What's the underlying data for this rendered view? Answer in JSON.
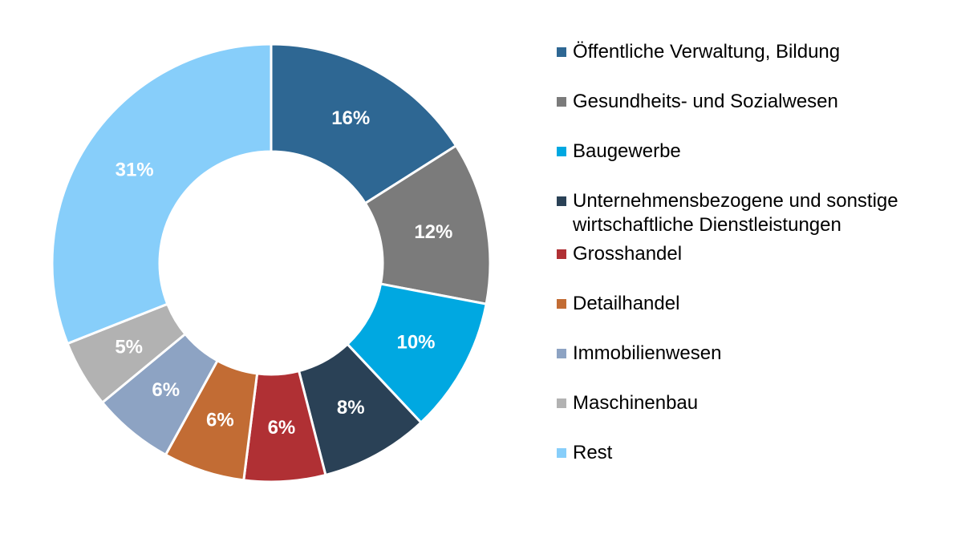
{
  "chart_data": {
    "type": "pie",
    "variant": "donut",
    "title": "",
    "legend_position": "right",
    "slices": [
      {
        "label": "Öffentliche Verwaltung, Bildung",
        "value": 16,
        "display": "16%",
        "color": "#2E6793"
      },
      {
        "label": "Gesundheits- und Sozialwesen",
        "value": 12,
        "display": "12%",
        "color": "#7B7B7B"
      },
      {
        "label": "Baugewerbe",
        "value": 10,
        "display": "10%",
        "color": "#00A8E1"
      },
      {
        "label": "Unternehmensbezogene und sonstige wirtschaftliche Dienstleistungen",
        "value": 8,
        "display": "8%",
        "color": "#2A4156"
      },
      {
        "label": "Grosshandel",
        "value": 6,
        "display": "6%",
        "color": "#B03034"
      },
      {
        "label": "Detailhandel",
        "value": 6,
        "display": "6%",
        "color": "#C26C34"
      },
      {
        "label": "Immobilienwesen",
        "value": 6,
        "display": "6%",
        "color": "#8DA3C3"
      },
      {
        "label": "Maschinenbau",
        "value": 5,
        "display": "5%",
        "color": "#B2B2B2"
      },
      {
        "label": "Rest",
        "value": 31,
        "display": "31%",
        "color": "#87CEFA"
      }
    ]
  }
}
